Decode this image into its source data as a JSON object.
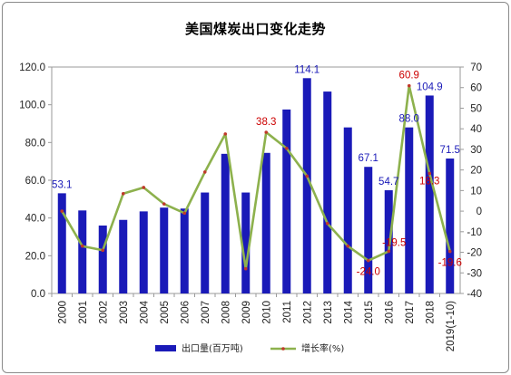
{
  "chart_data": {
    "type": "bar",
    "title": "美国煤炭出口变化走势",
    "categories": [
      "2000",
      "2001",
      "2002",
      "2003",
      "2004",
      "2005",
      "2006",
      "2007",
      "2008",
      "2009",
      "2010",
      "2011",
      "2012",
      "2013",
      "2014",
      "2015",
      "2016",
      "2017",
      "2018",
      "2019(1-10)"
    ],
    "y_left_ticks": [
      "0.0",
      "20.0",
      "40.0",
      "60.0",
      "80.0",
      "100.0",
      "120.0"
    ],
    "y_right_ticks": [
      "-40",
      "-30",
      "-20",
      "-10",
      "0",
      "10",
      "20",
      "30",
      "40",
      "50",
      "60",
      "70"
    ],
    "ylim_left": [
      0,
      120
    ],
    "ylim_right": [
      -40,
      70
    ],
    "grid": false,
    "legend_position": "bottom",
    "series": [
      {
        "name": "出口量(百万吨)",
        "kind": "bar",
        "axis": "left",
        "color": "#1a1ab8",
        "values": [
          53.1,
          44.0,
          36.0,
          39.0,
          43.5,
          45.5,
          45.0,
          53.5,
          74.0,
          53.5,
          74.5,
          97.5,
          114.1,
          107.0,
          88.0,
          67.1,
          54.7,
          88.0,
          104.9,
          71.5
        ],
        "labels": [
          {
            "index": 0,
            "text": "53.1"
          },
          {
            "index": 12,
            "text": "114.1"
          },
          {
            "index": 15,
            "text": "67.1"
          },
          {
            "index": 16,
            "text": "54.7"
          },
          {
            "index": 17,
            "text": "88.0"
          },
          {
            "index": 18,
            "text": "104.9"
          },
          {
            "index": 19,
            "text": "71.5"
          }
        ],
        "label_color": "#1a1ab8"
      },
      {
        "name": "增长率(%)",
        "kind": "line",
        "axis": "right",
        "color": "#8db14d",
        "marker_color": "#c0392b",
        "values": [
          0,
          -17,
          -19,
          8.5,
          11.5,
          3.5,
          -1,
          19,
          37.5,
          -28,
          38.3,
          30.5,
          17,
          -6,
          -17,
          -24.0,
          -19.5,
          60.9,
          18.3,
          -19.6
        ],
        "labels": [
          {
            "index": 10,
            "text": "38.3"
          },
          {
            "index": 15,
            "text": "-24.0"
          },
          {
            "index": 16,
            "text": "-19.5"
          },
          {
            "index": 17,
            "text": "60.9"
          },
          {
            "index": 18,
            "text": "18.3"
          },
          {
            "index": 19,
            "text": "-19.6"
          }
        ],
        "label_color": "#cc0000"
      }
    ]
  }
}
